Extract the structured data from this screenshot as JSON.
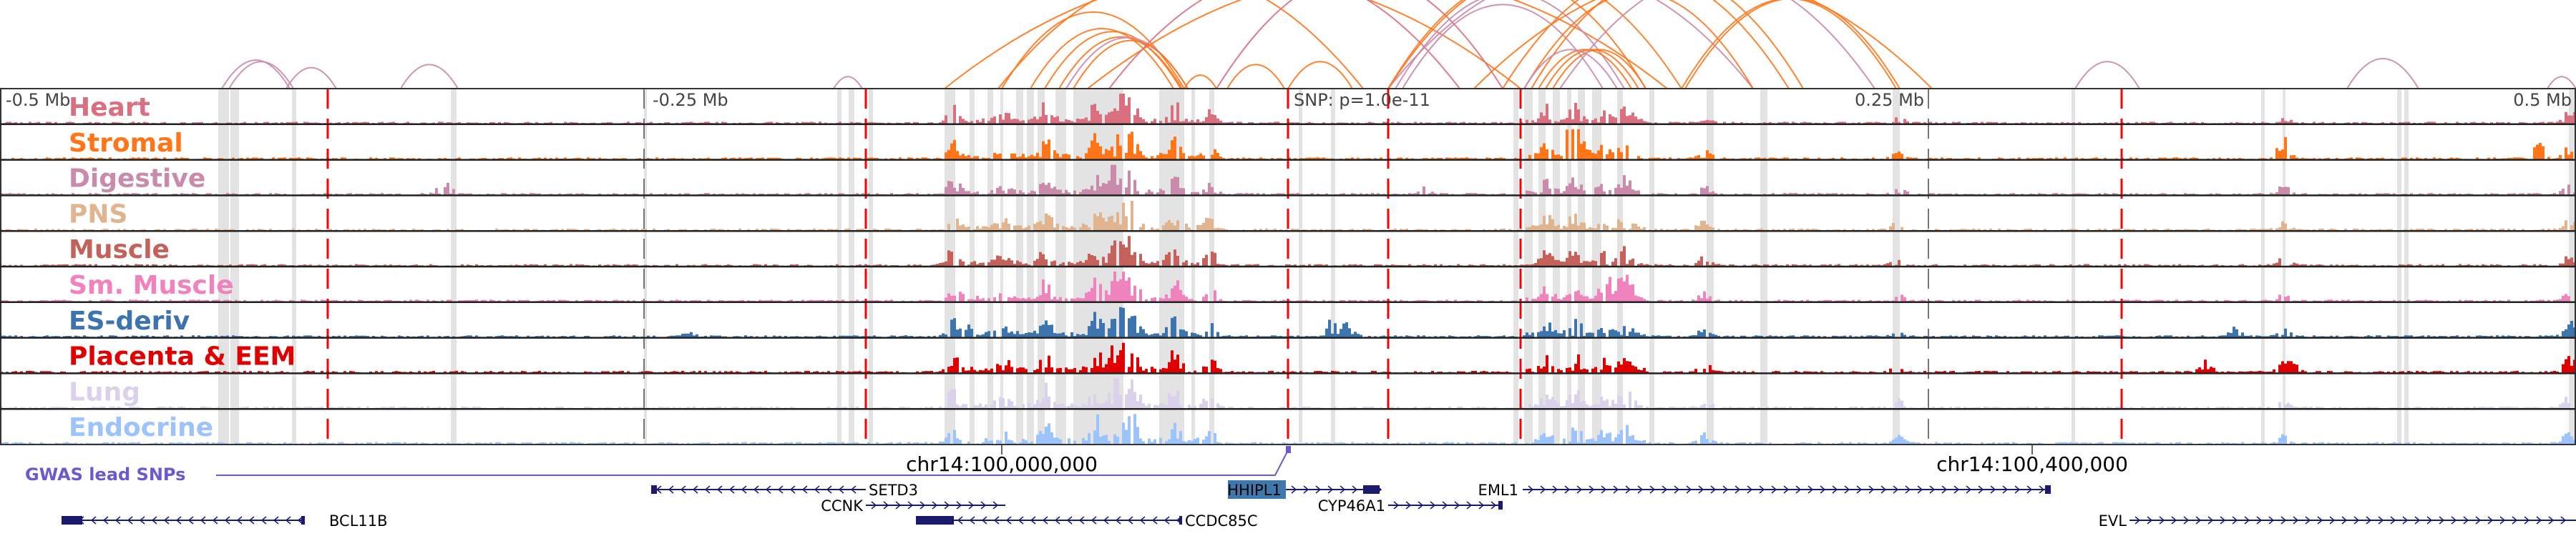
{
  "tracks": [
    {
      "label": "Heart",
      "color": "#d96f7f"
    },
    {
      "label": "Stromal",
      "color": "#ff7518"
    },
    {
      "label": "Digestive",
      "color": "#c98aab"
    },
    {
      "label": "PNS",
      "color": "#e0b48f"
    },
    {
      "label": "Muscle",
      "color": "#c4615b"
    },
    {
      "label": "Sm. Muscle",
      "color": "#f082bd"
    },
    {
      "label": "ES-deriv",
      "color": "#3d74ad"
    },
    {
      "label": "Placenta & EEM",
      "color": "#e00000"
    },
    {
      "label": "Lung",
      "color": "#d9d2ea"
    },
    {
      "label": "Endocrine",
      "color": "#9cc3fb"
    }
  ],
  "axis": {
    "left": "-0.5 Mb",
    "left_mid": "-0.25 Mb",
    "snp": "SNP: p=1.0e-11",
    "right_mid": "0.25 Mb",
    "right": "0.5 Mb"
  },
  "coords": {
    "tick1": "chr14:100,000,000",
    "tick2": "chr14:100,400,000"
  },
  "gwas_label": "GWAS lead SNPs",
  "genes": {
    "setd3": "SETD3",
    "ccnk": "CCNK",
    "ccdc85c": "CCDC85C",
    "hhipl1": "HHIPL1",
    "cyp46a1": "CYP46A1",
    "eml1": "EML1",
    "evl": "EVL",
    "bcl11b": "BCL11B"
  },
  "colors": {
    "gene": "#1a1a6e",
    "highlight_gene": "#3f78ad",
    "gwas": "#6a5acd",
    "enhancer_line": "#ff0000",
    "shade": "#e3e3e3"
  }
}
